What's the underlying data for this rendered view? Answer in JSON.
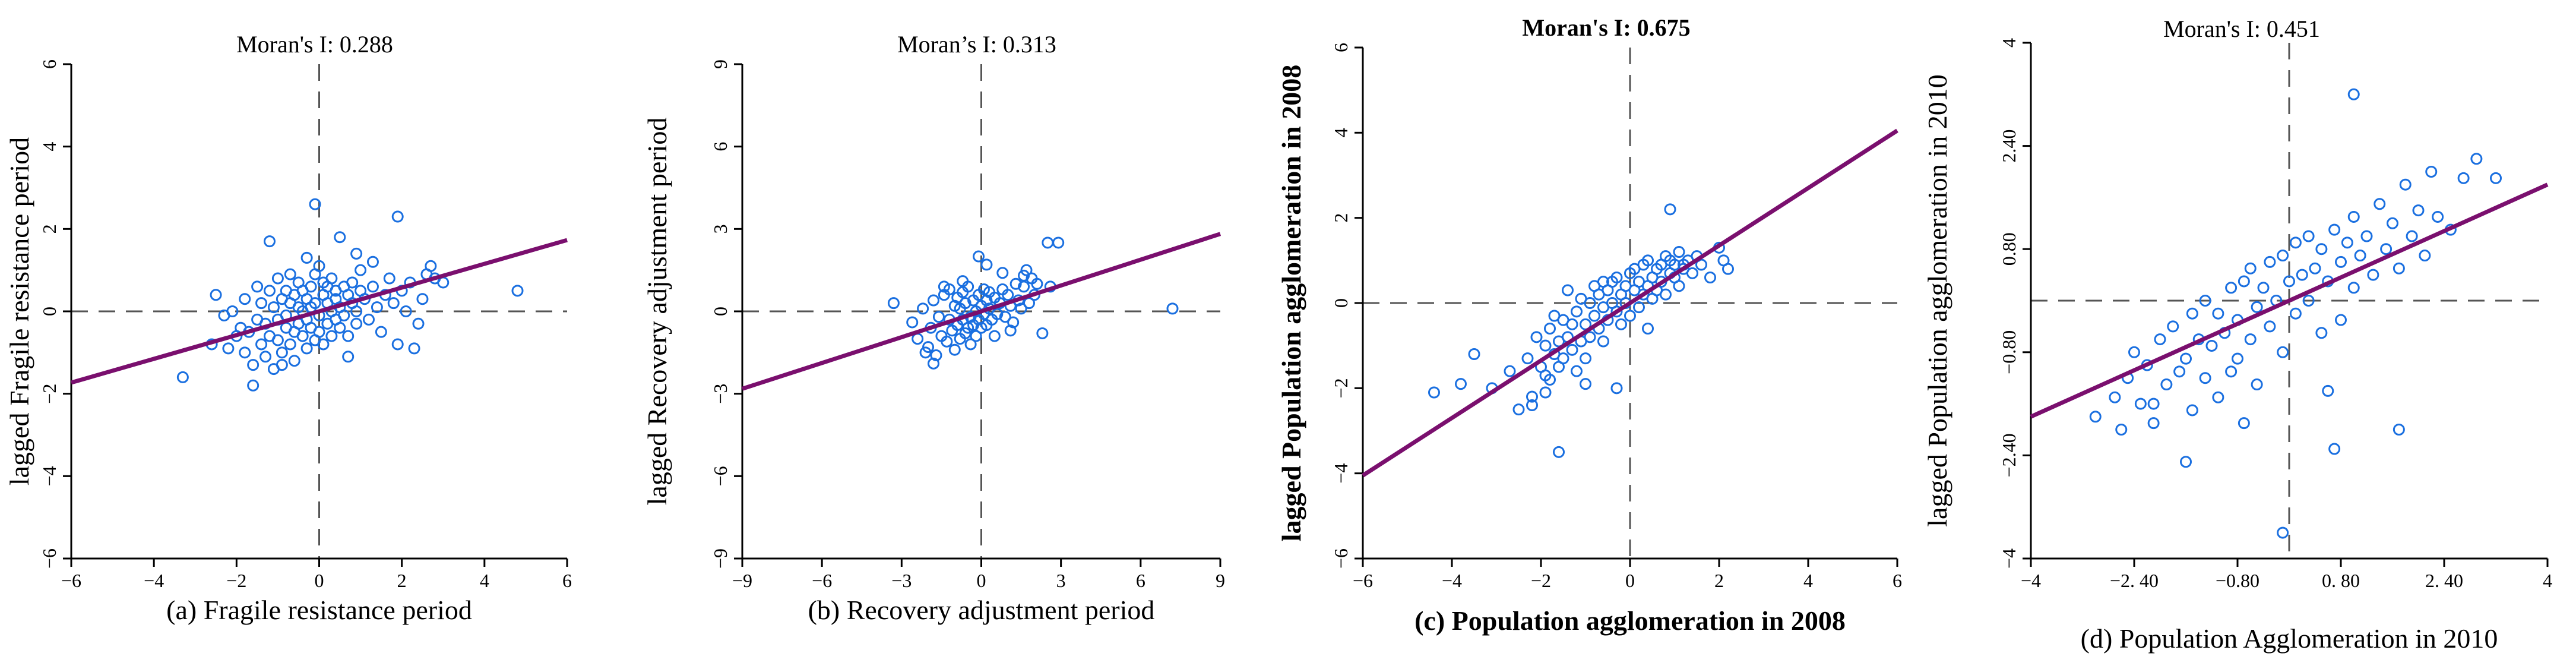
{
  "figure": {
    "description_colors": {
      "point": "#1a6fe0",
      "regression": "#7a0f6e",
      "axis": "#000000",
      "dashed": "#555555"
    }
  },
  "chart_data": [
    {
      "type": "scatter",
      "title": "Moran's I: 0.288",
      "xlabel": "(a) Fragile resistance period",
      "ylabel": "lagged Fragile resistance period",
      "xlim": [
        -6,
        6
      ],
      "ylim": [
        -6,
        6
      ],
      "xticks": [
        -6,
        -4,
        -2,
        0,
        2,
        4,
        6
      ],
      "xtick_labels": [
        "−6",
        "−4",
        "−2",
        "0",
        "2",
        "4",
        "6"
      ],
      "yticks": [
        -6,
        -4,
        -2,
        0,
        2,
        4,
        6
      ],
      "ytick_labels": [
        "−6",
        "−4",
        "−2",
        "0",
        "2",
        "4",
        "6"
      ],
      "slope": 0.288,
      "regression_line": {
        "x": [
          -6,
          6
        ],
        "y": [
          -1.73,
          1.73
        ]
      },
      "points": {
        "x": [
          -3.3,
          -2.6,
          -2.5,
          -2.3,
          -2.2,
          -2.1,
          -2.0,
          -1.9,
          -1.8,
          -1.8,
          -1.7,
          -1.6,
          -1.5,
          -1.5,
          -1.4,
          -1.4,
          -1.3,
          -1.3,
          -1.2,
          -1.2,
          -1.1,
          -1.1,
          -1.0,
          -1.0,
          -1.0,
          -0.9,
          -0.9,
          -0.8,
          -0.8,
          -0.8,
          -0.7,
          -0.7,
          -0.7,
          -0.6,
          -0.6,
          -0.6,
          -0.5,
          -0.5,
          -0.5,
          -0.4,
          -0.4,
          -0.4,
          -0.3,
          -0.3,
          -0.3,
          -0.2,
          -0.2,
          -0.2,
          -0.1,
          -0.1,
          -0.1,
          0.0,
          0.0,
          0.0,
          0.1,
          0.1,
          0.1,
          0.2,
          0.2,
          0.2,
          0.3,
          0.3,
          0.3,
          0.4,
          0.4,
          0.4,
          0.5,
          0.5,
          0.6,
          0.6,
          0.7,
          0.7,
          0.8,
          0.8,
          0.9,
          0.9,
          1.0,
          1.0,
          1.1,
          1.2,
          1.3,
          1.4,
          1.5,
          1.6,
          1.7,
          1.8,
          1.9,
          2.0,
          2.1,
          2.2,
          2.4,
          2.5,
          2.6,
          2.7,
          2.8,
          3.0,
          4.8,
          -0.1,
          1.9,
          0.5,
          -1.2,
          0.9,
          -0.3,
          1.3,
          -0.9,
          2.3,
          -1.6,
          0.7
        ],
        "y": [
          -1.6,
          -0.8,
          0.4,
          -0.1,
          -0.9,
          0.0,
          -0.6,
          -0.4,
          0.3,
          -1.0,
          -0.5,
          -1.3,
          0.6,
          -0.2,
          -0.8,
          0.2,
          -1.1,
          -0.3,
          0.5,
          -0.6,
          0.1,
          -1.4,
          0.8,
          -0.2,
          -0.7,
          0.3,
          -1.0,
          0.5,
          -0.4,
          -0.1,
          0.9,
          -0.8,
          0.2,
          -0.5,
          0.4,
          -1.2,
          0.1,
          -0.3,
          0.7,
          -0.6,
          0.0,
          0.5,
          -0.9,
          0.3,
          -0.2,
          0.6,
          -0.4,
          0.1,
          0.9,
          -0.7,
          0.2,
          1.1,
          -0.1,
          -0.5,
          0.4,
          -0.8,
          0.7,
          0.2,
          -0.3,
          0.6,
          0.0,
          -0.6,
          0.8,
          0.3,
          -0.2,
          0.5,
          0.1,
          -0.4,
          0.6,
          -0.1,
          0.4,
          -0.6,
          0.2,
          0.7,
          0.0,
          -0.3,
          0.5,
          1.0,
          0.3,
          -0.2,
          0.6,
          0.1,
          -0.5,
          0.4,
          0.8,
          0.2,
          -0.8,
          0.5,
          0.0,
          0.7,
          -0.3,
          0.3,
          0.9,
          1.1,
          0.8,
          0.7,
          0.5,
          2.6,
          2.3,
          1.8,
          1.7,
          1.4,
          1.3,
          1.2,
          -1.3,
          -0.9,
          -1.8,
          -1.1
        ]
      }
    },
    {
      "type": "scatter",
      "title": "Moran’s I:   0.313",
      "xlabel": "(b) Recovery adjustment period",
      "ylabel": "lagged Recovery adjustment period",
      "xlim": [
        -9,
        9
      ],
      "ylim": [
        -9,
        9
      ],
      "xticks": [
        -9,
        -6,
        -3,
        0,
        3,
        6,
        9
      ],
      "xtick_labels": [
        "−9",
        "−6",
        "−3",
        "0",
        "3",
        "6",
        "9"
      ],
      "yticks": [
        -9,
        -6,
        -3,
        0,
        3,
        6,
        9
      ],
      "ytick_labels": [
        "−9",
        "−6",
        "−3",
        "0",
        "3",
        "6",
        "9"
      ],
      "slope": 0.313,
      "regression_line": {
        "x": [
          -9,
          9
        ],
        "y": [
          -2.82,
          2.82
        ]
      },
      "points": {
        "x": [
          -3.3,
          -2.6,
          -2.4,
          -2.2,
          -2.0,
          -1.9,
          -1.8,
          -1.7,
          -1.6,
          -1.5,
          -1.4,
          -1.3,
          -1.2,
          -1.2,
          -1.1,
          -1.0,
          -1.0,
          -0.9,
          -0.9,
          -0.8,
          -0.8,
          -0.7,
          -0.7,
          -0.6,
          -0.6,
          -0.5,
          -0.5,
          -0.4,
          -0.4,
          -0.3,
          -0.3,
          -0.2,
          -0.2,
          -0.1,
          -0.1,
          0.0,
          0.0,
          0.1,
          0.1,
          0.2,
          0.2,
          0.3,
          0.3,
          0.4,
          0.5,
          0.6,
          0.7,
          0.8,
          0.9,
          1.0,
          1.1,
          1.2,
          1.3,
          1.4,
          1.5,
          1.6,
          1.7,
          1.8,
          1.9,
          2.0,
          2.1,
          2.3,
          2.5,
          2.6,
          2.9,
          7.2,
          -0.1,
          0.2,
          1.6,
          -1.8,
          0.5,
          -0.7,
          1.1,
          -2.1,
          0.8,
          -1.4
        ],
        "y": [
          0.3,
          -0.4,
          -1.0,
          0.1,
          -1.3,
          -0.6,
          0.4,
          -1.6,
          -0.2,
          -0.9,
          0.6,
          -1.1,
          -0.3,
          0.8,
          -0.7,
          0.2,
          -1.4,
          -0.5,
          0.5,
          -1.0,
          0.1,
          -0.3,
          0.7,
          -0.8,
          0.3,
          -0.6,
          0.9,
          -0.2,
          -1.2,
          0.4,
          -0.5,
          0.0,
          -0.9,
          0.6,
          -0.3,
          0.2,
          -0.6,
          0.8,
          -0.1,
          0.4,
          -0.5,
          0.1,
          0.7,
          -0.3,
          0.5,
          -0.1,
          0.3,
          0.8,
          -0.2,
          0.6,
          0.2,
          -0.4,
          1.0,
          0.4,
          0.1,
          0.9,
          1.5,
          0.3,
          1.2,
          0.6,
          1.0,
          -0.8,
          2.5,
          0.9,
          2.5,
          0.1,
          2.0,
          1.7,
          1.3,
          -1.9,
          -0.9,
          1.1,
          -0.7,
          -1.5,
          1.4,
          0.9
        ]
      }
    },
    {
      "type": "scatter",
      "title": "Moran's I: 0.675",
      "xlabel": "(c) Population agglomeration in 2008",
      "ylabel": "lagged Population agglomeration in 2008",
      "xlim": [
        -6,
        6
      ],
      "ylim": [
        -6,
        6
      ],
      "xticks": [
        -6,
        -4,
        -2,
        0,
        2,
        4,
        6
      ],
      "xtick_labels": [
        "−6",
        "−4",
        "−2",
        "0",
        "2",
        "4",
        "6"
      ],
      "yticks": [
        -6,
        -4,
        -2,
        0,
        2,
        4,
        6
      ],
      "ytick_labels": [
        "−6",
        "−4",
        "−2",
        "0",
        "2",
        "4",
        "6"
      ],
      "slope": 0.675,
      "regression_line": {
        "x": [
          -6,
          6
        ],
        "y": [
          -4.05,
          4.05
        ]
      },
      "points": {
        "x": [
          -4.4,
          -3.8,
          -3.5,
          -3.1,
          -2.7,
          -2.5,
          -2.3,
          -2.2,
          -2.1,
          -2.0,
          -1.9,
          -1.9,
          -1.8,
          -1.8,
          -1.7,
          -1.7,
          -1.6,
          -1.6,
          -1.5,
          -1.5,
          -1.4,
          -1.4,
          -1.3,
          -1.3,
          -1.2,
          -1.2,
          -1.1,
          -1.1,
          -1.0,
          -1.0,
          -0.9,
          -0.9,
          -0.8,
          -0.8,
          -0.7,
          -0.7,
          -0.6,
          -0.6,
          -0.5,
          -0.5,
          -0.4,
          -0.4,
          -0.3,
          -0.3,
          -0.2,
          -0.2,
          -0.1,
          -0.1,
          0.0,
          0.0,
          0.1,
          0.1,
          0.2,
          0.2,
          0.3,
          0.3,
          0.4,
          0.4,
          0.5,
          0.5,
          0.6,
          0.6,
          0.7,
          0.7,
          0.8,
          0.8,
          0.9,
          0.9,
          1.0,
          1.0,
          1.1,
          1.1,
          1.2,
          1.3,
          1.4,
          1.5,
          1.6,
          1.8,
          2.0,
          2.1,
          2.2,
          0.9,
          -1.6,
          -0.3,
          -2.2,
          -1.0,
          0.4,
          -1.9,
          -0.6,
          1.2
        ],
        "y": [
          -2.1,
          -1.9,
          -1.2,
          -2.0,
          -1.6,
          -2.5,
          -1.3,
          -2.2,
          -0.8,
          -1.5,
          -1.0,
          -2.1,
          -0.6,
          -1.8,
          -1.2,
          -0.3,
          -1.5,
          -0.9,
          -0.4,
          -1.3,
          -0.8,
          0.3,
          -1.1,
          -0.5,
          -0.2,
          -1.6,
          -0.9,
          0.1,
          -0.5,
          -1.3,
          0.0,
          -0.8,
          -0.3,
          0.4,
          -0.6,
          0.2,
          -0.1,
          -0.9,
          0.3,
          -0.4,
          0.0,
          0.5,
          -0.2,
          0.6,
          0.2,
          -0.5,
          0.4,
          0.0,
          0.7,
          -0.3,
          0.3,
          0.8,
          -0.1,
          0.5,
          0.9,
          0.2,
          0.4,
          1.0,
          0.1,
          0.6,
          0.8,
          0.3,
          0.9,
          0.5,
          1.1,
          0.2,
          0.7,
          1.0,
          0.6,
          0.9,
          0.4,
          1.2,
          0.8,
          1.0,
          0.7,
          1.1,
          0.9,
          0.6,
          1.3,
          1.0,
          0.8,
          2.2,
          -3.5,
          -2.0,
          -2.4,
          -1.9,
          -0.6,
          -1.7,
          0.5,
          0.9
        ]
      }
    },
    {
      "type": "scatter",
      "title": "Moran's I:   0.451",
      "xlabel": "(d)  Population Agglomeration in 2010",
      "ylabel": "lagged Population agglomeration in 2010",
      "xlim": [
        -4,
        4
      ],
      "ylim": [
        -4,
        4
      ],
      "xticks": [
        -4,
        -2.4,
        -0.8,
        0.8,
        2.4,
        4
      ],
      "xtick_labels": [
        "−4",
        "−2. 40",
        "−0.80",
        "0. 80",
        "2. 40",
        "4"
      ],
      "yticks": [
        -4,
        -2.4,
        -0.8,
        0.8,
        2.4,
        4
      ],
      "ytick_labels": [
        "−4",
        "−2.40",
        "−0.80",
        "0.80",
        "2.40",
        "4"
      ],
      "slope": 0.451,
      "regression_line": {
        "x": [
          -4,
          4
        ],
        "y": [
          -1.8,
          1.8
        ]
      },
      "points": {
        "x": [
          -3.0,
          -2.7,
          -2.6,
          -2.5,
          -2.4,
          -2.3,
          -2.2,
          -2.1,
          -2.0,
          -1.9,
          -1.8,
          -1.7,
          -1.6,
          -1.5,
          -1.5,
          -1.4,
          -1.3,
          -1.3,
          -1.2,
          -1.1,
          -1.1,
          -1.0,
          -0.9,
          -0.9,
          -0.8,
          -0.8,
          -0.7,
          -0.6,
          -0.6,
          -0.5,
          -0.5,
          -0.4,
          -0.3,
          -0.3,
          -0.2,
          -0.1,
          -0.1,
          0.0,
          0.1,
          0.1,
          0.2,
          0.3,
          0.3,
          0.4,
          0.5,
          0.5,
          0.6,
          0.7,
          0.8,
          0.8,
          0.9,
          1.0,
          1.0,
          1.1,
          1.2,
          1.3,
          1.4,
          1.5,
          1.6,
          1.7,
          1.8,
          1.9,
          2.0,
          2.1,
          2.2,
          2.3,
          2.5,
          2.7,
          2.9,
          3.2,
          1.0,
          -0.1,
          1.7,
          -1.6,
          0.7,
          -0.7,
          -2.1,
          0.6
        ],
        "y": [
          -1.8,
          -1.5,
          -2.0,
          -1.2,
          -0.8,
          -1.6,
          -1.0,
          -1.9,
          -0.6,
          -1.3,
          -0.4,
          -1.1,
          -0.9,
          -0.2,
          -1.7,
          -0.6,
          -1.2,
          0.0,
          -0.7,
          -0.2,
          -1.5,
          -0.5,
          0.2,
          -1.1,
          -0.3,
          -0.9,
          0.3,
          -0.6,
          0.5,
          -0.1,
          -1.3,
          0.2,
          -0.4,
          0.6,
          0.0,
          -0.8,
          0.7,
          0.3,
          -0.2,
          0.9,
          0.4,
          0.0,
          1.0,
          0.5,
          -0.5,
          0.8,
          0.3,
          1.1,
          0.6,
          -0.3,
          0.9,
          0.2,
          1.3,
          0.7,
          1.0,
          0.4,
          1.5,
          0.8,
          1.2,
          0.5,
          1.8,
          1.0,
          1.4,
          0.7,
          2.0,
          1.3,
          1.1,
          1.9,
          2.2,
          1.9,
          3.2,
          -3.6,
          -2.0,
          -2.5,
          -2.3,
          -1.9,
          -1.6,
          -1.4
        ]
      }
    }
  ]
}
